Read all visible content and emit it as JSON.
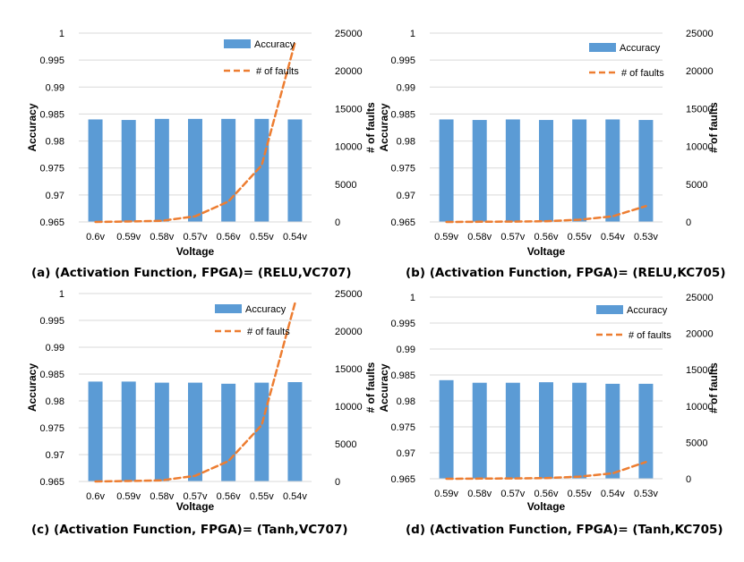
{
  "chart_data": [
    {
      "type": "bar",
      "caption": "(a) (Activation Function, FPGA)= (RELU,VC707)",
      "categories": [
        "0.6v",
        "0.59v",
        "0.58v",
        "0.57v",
        "0.56v",
        "0.55v",
        "0.54v"
      ],
      "series": [
        {
          "name": "Accuracy",
          "type": "bar",
          "axis": "left",
          "color": "#5b9bd5",
          "values": [
            0.984,
            0.9839,
            0.9841,
            0.9841,
            0.9841,
            0.9841,
            0.984
          ]
        },
        {
          "name": "# of faults",
          "type": "line",
          "style": "dashed",
          "axis": "right",
          "color": "#ed7d31",
          "values": [
            0,
            60,
            150,
            750,
            2700,
            7500,
            23700
          ]
        }
      ],
      "xlabel": "Voltage",
      "ylabel": "Accuracy",
      "y2label": "# of faults",
      "ylim": [
        0.965,
        1
      ],
      "y_ticks": [
        "0.965",
        "0.97",
        "0.975",
        "0.98",
        "0.985",
        "0.99",
        "0.995",
        "1"
      ],
      "y2lim": [
        0,
        25000
      ],
      "y2_ticks": [
        "0",
        "5000",
        "10000",
        "15000",
        "20000",
        "25000"
      ],
      "legend": "top-right"
    },
    {
      "type": "bar",
      "caption": "(b) (Activation Function, FPGA)= (RELU,KC705)",
      "categories": [
        "0.59v",
        "0.58v",
        "0.57v",
        "0.56v",
        "0.55v",
        "0.54v",
        "0.53v"
      ],
      "series": [
        {
          "name": "Accuracy",
          "type": "bar",
          "axis": "left",
          "color": "#5b9bd5",
          "values": [
            0.984,
            0.9839,
            0.984,
            0.9839,
            0.984,
            0.984,
            0.9839
          ]
        },
        {
          "name": "# of faults",
          "type": "line",
          "style": "dashed",
          "axis": "right",
          "color": "#ed7d31",
          "values": [
            0,
            20,
            50,
            100,
            300,
            750,
            2100
          ]
        }
      ],
      "xlabel": "Voltage",
      "ylabel": "Accuracy",
      "y2label": "# of faults",
      "ylim": [
        0.965,
        1
      ],
      "y_ticks": [
        "0.965",
        "0.97",
        "0.975",
        "0.98",
        "0.985",
        "0.99",
        "0.995",
        "1"
      ],
      "y2lim": [
        0,
        25000
      ],
      "y2_ticks": [
        "0",
        "5000",
        "10000",
        "15000",
        "20000",
        "25000"
      ],
      "legend": "top-right"
    },
    {
      "type": "bar",
      "caption": "(c) (Activation Function, FPGA)= (Tanh,VC707)",
      "categories": [
        "0.6v",
        "0.59v",
        "0.58v",
        "0.57v",
        "0.56v",
        "0.55v",
        "0.54v"
      ],
      "series": [
        {
          "name": "Accuracy",
          "type": "bar",
          "axis": "left",
          "color": "#5b9bd5",
          "values": [
            0.9836,
            0.9836,
            0.9834,
            0.9834,
            0.9832,
            0.9834,
            0.9835
          ]
        },
        {
          "name": "# of faults",
          "type": "line",
          "style": "dashed",
          "axis": "right",
          "color": "#ed7d31",
          "values": [
            0,
            60,
            150,
            750,
            2700,
            7500,
            23700
          ]
        }
      ],
      "xlabel": "Voltage",
      "ylabel": "Accuracy",
      "y2label": "# of faults",
      "ylim": [
        0.965,
        1
      ],
      "y_ticks": [
        "0.965",
        "0.97",
        "0.975",
        "0.98",
        "0.985",
        "0.99",
        "0.995",
        "1"
      ],
      "y2lim": [
        0,
        25000
      ],
      "y2_ticks": [
        "0",
        "5000",
        "10000",
        "15000",
        "20000",
        "25000"
      ],
      "legend": "top-right"
    },
    {
      "type": "bar",
      "caption": "(d) (Activation Function, FPGA)= (Tanh,KC705)",
      "categories": [
        "0.59v",
        "0.58v",
        "0.57v",
        "0.56v",
        "0.55v",
        "0.54v",
        "0.53v"
      ],
      "series": [
        {
          "name": "Accuracy",
          "type": "bar",
          "axis": "left",
          "color": "#5b9bd5",
          "values": [
            0.984,
            0.9835,
            0.9835,
            0.9836,
            0.9835,
            0.9833,
            0.9833
          ]
        },
        {
          "name": "# of faults",
          "type": "line",
          "style": "dashed",
          "axis": "right",
          "color": "#ed7d31",
          "values": [
            0,
            20,
            50,
            100,
            300,
            750,
            2300
          ]
        }
      ],
      "xlabel": "Voltage",
      "ylabel": "Accuracy",
      "y2label": "# of faults",
      "ylim": [
        0.965,
        1
      ],
      "y_ticks": [
        "0.965",
        "0.97",
        "0.975",
        "0.98",
        "0.985",
        "0.99",
        "0.995",
        "1"
      ],
      "y2lim": [
        0,
        25000
      ],
      "y2_ticks": [
        "0",
        "5000",
        "10000",
        "15000",
        "20000",
        "25000"
      ],
      "legend": "top-right"
    }
  ]
}
